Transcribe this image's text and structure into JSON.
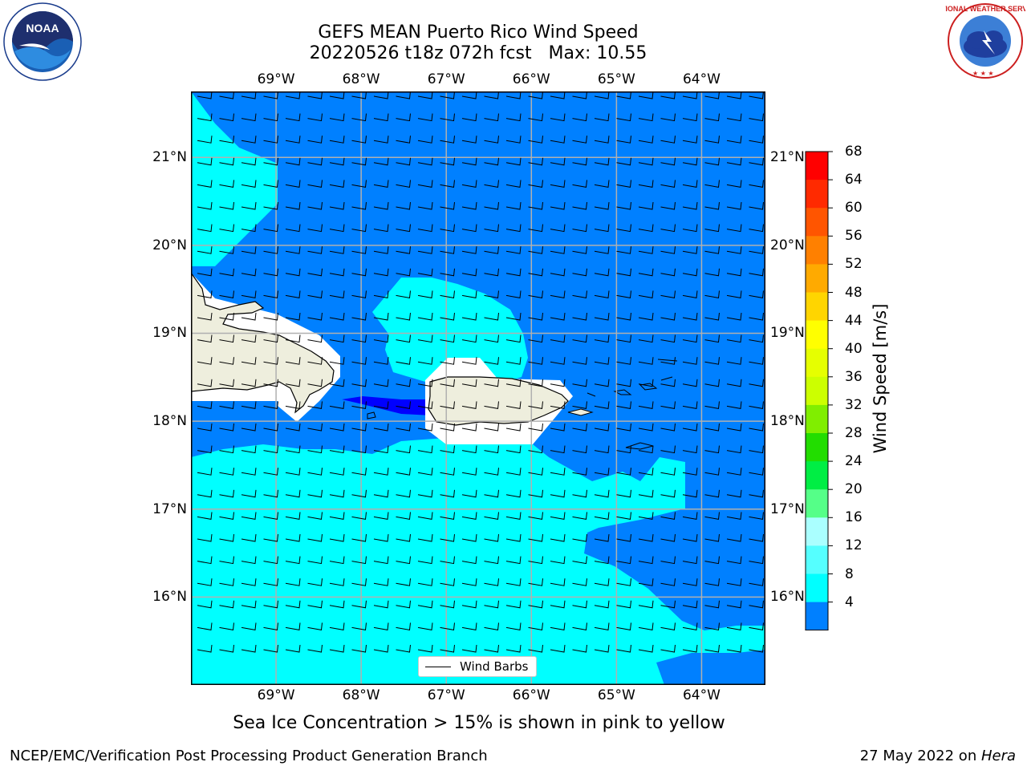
{
  "title": {
    "line1": "GEFS MEAN Puerto Rico Wind Speed",
    "line2": "20220526 t18z 072h fcst   Max: 10.55"
  },
  "logos": {
    "noaa_text": "NOAA",
    "nws_text": "NATIONAL WEATHER SERVICE"
  },
  "axes": {
    "longitudes": [
      "69°W",
      "68°W",
      "67°W",
      "66°W",
      "65°W",
      "64°W"
    ],
    "latitudes": [
      "21°N",
      "20°N",
      "19°N",
      "18°N",
      "17°N",
      "16°N"
    ],
    "lon_range": [
      -70,
      -63.25
    ],
    "lat_range": [
      15,
      21.75
    ]
  },
  "colorbar": {
    "label": "Wind Speed [m/s]",
    "ticks": [
      "68",
      "64",
      "60",
      "56",
      "52",
      "48",
      "44",
      "40",
      "36",
      "32",
      "28",
      "24",
      "20",
      "16",
      "12",
      "8",
      "4"
    ],
    "colors": [
      "#ff0000",
      "#ff2a00",
      "#ff5500",
      "#ff8000",
      "#ffaa00",
      "#ffd500",
      "#ffff00",
      "#e6ff00",
      "#ccff00",
      "#80ee00",
      "#22dd00",
      "#00ee44",
      "#55ff88",
      "#aaffff",
      "#55ffff",
      "#00ffff",
      "#0080ff"
    ],
    "extend_below_color": "#0000ff"
  },
  "field_colors": {
    "range_4_8": "#0080ff",
    "range_8_12": "#00ffff",
    "below_4": "#0000ff",
    "land": "#eeeedd",
    "masked": "#ffffff"
  },
  "legend": {
    "label": "Wind Barbs"
  },
  "footer": {
    "note": "Sea Ice Concentration > 15% is shown in pink to yellow",
    "credit": "NCEP/EMC/Verification Post Processing Product Generation Branch",
    "date_prefix": "27 May 2022 on ",
    "machine": "Hera"
  }
}
